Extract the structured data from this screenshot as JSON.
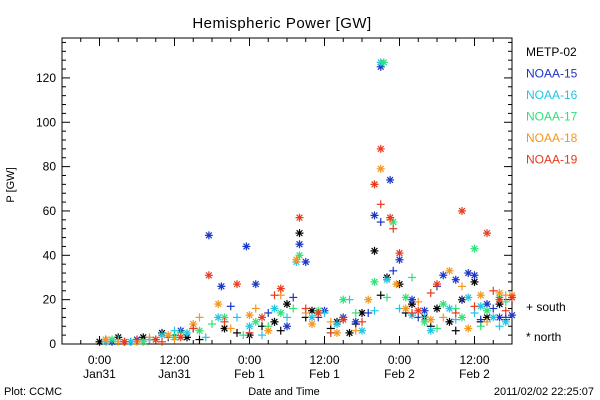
{
  "chart_data": {
    "type": "scatter",
    "title": "Hemispheric Power [GW]",
    "xlabel": "Date and Time",
    "ylabel": "P [GW]",
    "x_unit": "hours",
    "xlim": [
      -6,
      66
    ],
    "ylim": [
      0,
      138
    ],
    "y_ticks": [
      0,
      20,
      40,
      60,
      80,
      100,
      120
    ],
    "x_ticks": [
      {
        "x": 0,
        "time": "0:00",
        "date": "Jan31"
      },
      {
        "x": 12,
        "time": "12:00",
        "date": "Jan31"
      },
      {
        "x": 24,
        "time": "0:00",
        "date": "Feb 1"
      },
      {
        "x": 36,
        "time": "12:00",
        "date": "Feb 1"
      },
      {
        "x": 48,
        "time": "0:00",
        "date": "Feb 2"
      },
      {
        "x": 60,
        "time": "12:00",
        "date": "Feb 2"
      }
    ],
    "legend_position": "right",
    "marker_legend": [
      {
        "symbol": "+",
        "label": "+ south"
      },
      {
        "symbol": "*",
        "label": "* north"
      }
    ],
    "footer_left": "Plot: CCMC",
    "footer_right": "2011/02/02 22:25:07",
    "series": [
      {
        "name": "METP-02",
        "color": "#000000",
        "north": [
          [
            0,
            1
          ],
          [
            3,
            3
          ],
          [
            7,
            3
          ],
          [
            10,
            5
          ],
          [
            14,
            3
          ],
          [
            20,
            7
          ],
          [
            24,
            4
          ],
          [
            28,
            10
          ],
          [
            30,
            18
          ],
          [
            32,
            50
          ],
          [
            34,
            15
          ],
          [
            38,
            10
          ],
          [
            40,
            5
          ],
          [
            42,
            14
          ],
          [
            44,
            42
          ],
          [
            46,
            30
          ],
          [
            48,
            27
          ],
          [
            50,
            18
          ],
          [
            52,
            12
          ],
          [
            54,
            16
          ],
          [
            56,
            10
          ],
          [
            58,
            20
          ],
          [
            60,
            28
          ],
          [
            62,
            12
          ],
          [
            64,
            18
          ]
        ],
        "south": [
          [
            1,
            2
          ],
          [
            4,
            1
          ],
          [
            8,
            2
          ],
          [
            12,
            4
          ],
          [
            16,
            2
          ],
          [
            22,
            5
          ],
          [
            26,
            8
          ],
          [
            29,
            6
          ],
          [
            33,
            12
          ],
          [
            37,
            7
          ],
          [
            41,
            9
          ],
          [
            45,
            22
          ],
          [
            49,
            14
          ],
          [
            53,
            8
          ],
          [
            57,
            6
          ],
          [
            61,
            10
          ],
          [
            65,
            11
          ]
        ]
      },
      {
        "name": "NOAA-15",
        "color": "#1a35c8",
        "north": [
          [
            2,
            1
          ],
          [
            6,
            2
          ],
          [
            13,
            6
          ],
          [
            17.5,
            49
          ],
          [
            19.5,
            26
          ],
          [
            23.5,
            44
          ],
          [
            25,
            27
          ],
          [
            30,
            8
          ],
          [
            32,
            45
          ],
          [
            33,
            37
          ],
          [
            36,
            15
          ],
          [
            39,
            12
          ],
          [
            41,
            10
          ],
          [
            44,
            58
          ],
          [
            45,
            125
          ],
          [
            46.5,
            74
          ],
          [
            48,
            38
          ],
          [
            50,
            20
          ],
          [
            52,
            15
          ],
          [
            55,
            31
          ],
          [
            57,
            29
          ],
          [
            59,
            32
          ],
          [
            60,
            31
          ],
          [
            62,
            18
          ],
          [
            64,
            12
          ],
          [
            66,
            13
          ]
        ],
        "south": [
          [
            5,
            1
          ],
          [
            11,
            3
          ],
          [
            15,
            7
          ],
          [
            21,
            17
          ],
          [
            27,
            14
          ],
          [
            31,
            21
          ],
          [
            35,
            12
          ],
          [
            43,
            14
          ],
          [
            45,
            55
          ],
          [
            47,
            33
          ],
          [
            51,
            12
          ],
          [
            54,
            26
          ],
          [
            58,
            20
          ],
          [
            61,
            11
          ],
          [
            63,
            16
          ],
          [
            65,
            12
          ]
        ]
      },
      {
        "name": "NOAA-16",
        "color": "#1fc6e6",
        "north": [
          [
            1,
            1
          ],
          [
            5,
            1
          ],
          [
            10,
            4
          ],
          [
            14,
            5
          ],
          [
            19,
            12
          ],
          [
            24,
            8
          ],
          [
            28,
            16
          ],
          [
            31.5,
            37
          ],
          [
            34,
            12
          ],
          [
            38,
            9
          ],
          [
            42,
            6
          ],
          [
            45,
            127
          ],
          [
            46,
            29
          ],
          [
            50,
            13
          ],
          [
            53,
            6
          ],
          [
            56,
            16
          ],
          [
            59,
            21
          ],
          [
            61,
            17
          ],
          [
            63,
            12
          ],
          [
            65,
            10
          ]
        ],
        "south": [
          [
            3,
            2
          ],
          [
            8,
            2
          ],
          [
            12,
            6
          ],
          [
            17,
            3
          ],
          [
            22,
            12
          ],
          [
            26,
            4
          ],
          [
            30,
            12
          ],
          [
            36,
            14
          ],
          [
            40,
            20
          ],
          [
            44,
            15
          ],
          [
            48,
            16
          ],
          [
            52,
            12
          ],
          [
            57,
            11
          ],
          [
            60,
            14
          ],
          [
            64,
            8
          ]
        ]
      },
      {
        "name": "NOAA-17",
        "color": "#33e07a",
        "north": [
          [
            2,
            2
          ],
          [
            7,
            1
          ],
          [
            12,
            3
          ],
          [
            16,
            6
          ],
          [
            20,
            12
          ],
          [
            25,
            10
          ],
          [
            29,
            14
          ],
          [
            32,
            40
          ],
          [
            35,
            15
          ],
          [
            39,
            20
          ],
          [
            44,
            28
          ],
          [
            45.5,
            127
          ],
          [
            47,
            55
          ],
          [
            49,
            21
          ],
          [
            52,
            10
          ],
          [
            55,
            18
          ],
          [
            58,
            12
          ],
          [
            60,
            43
          ],
          [
            62,
            15
          ],
          [
            64,
            21
          ]
        ],
        "south": [
          [
            4,
            1
          ],
          [
            9,
            2
          ],
          [
            13,
            5
          ],
          [
            18,
            9
          ],
          [
            23,
            4
          ],
          [
            27,
            8
          ],
          [
            31,
            16
          ],
          [
            37,
            5
          ],
          [
            41,
            14
          ],
          [
            46,
            21
          ],
          [
            50,
            30
          ],
          [
            54,
            7
          ],
          [
            57,
            16
          ],
          [
            61,
            8
          ],
          [
            65,
            19
          ]
        ]
      },
      {
        "name": "NOAA-18",
        "color": "#f5961e",
        "north": [
          [
            1,
            2
          ],
          [
            6,
            1
          ],
          [
            11,
            4
          ],
          [
            15,
            9
          ],
          [
            19,
            18
          ],
          [
            24,
            13
          ],
          [
            27,
            6
          ],
          [
            31.5,
            38
          ],
          [
            34,
            9
          ],
          [
            38,
            5
          ],
          [
            43,
            20
          ],
          [
            45,
            79
          ],
          [
            47.5,
            27
          ],
          [
            49,
            16
          ],
          [
            53,
            11
          ],
          [
            56,
            33
          ],
          [
            59,
            7
          ],
          [
            61,
            22
          ],
          [
            64,
            23
          ],
          [
            66,
            22
          ]
        ],
        "south": [
          [
            3,
            1
          ],
          [
            8,
            3
          ],
          [
            12,
            2
          ],
          [
            16,
            12
          ],
          [
            21,
            7
          ],
          [
            25,
            16
          ],
          [
            29,
            22
          ],
          [
            33,
            14
          ],
          [
            37,
            10
          ],
          [
            41,
            6
          ],
          [
            44,
            72
          ],
          [
            46.5,
            56
          ],
          [
            51,
            19
          ],
          [
            55,
            12
          ],
          [
            58,
            26
          ],
          [
            62,
            10
          ],
          [
            65,
            22
          ]
        ]
      },
      {
        "name": "NOAA-19",
        "color": "#e83a1e",
        "north": [
          [
            4,
            1
          ],
          [
            9,
            2
          ],
          [
            13,
            3
          ],
          [
            17.5,
            31
          ],
          [
            22,
            27
          ],
          [
            26,
            12
          ],
          [
            29,
            25
          ],
          [
            32,
            57
          ],
          [
            35,
            14
          ],
          [
            39,
            11
          ],
          [
            44,
            72
          ],
          [
            45,
            88
          ],
          [
            46.5,
            57
          ],
          [
            48,
            41
          ],
          [
            51,
            15
          ],
          [
            54,
            27
          ],
          [
            58,
            60
          ],
          [
            62,
            50
          ],
          [
            64,
            20
          ],
          [
            66,
            21
          ]
        ],
        "south": [
          [
            6,
            2
          ],
          [
            10,
            1
          ],
          [
            15,
            7
          ],
          [
            20,
            10
          ],
          [
            24,
            5
          ],
          [
            28,
            22
          ],
          [
            33,
            16
          ],
          [
            37,
            5
          ],
          [
            42,
            10
          ],
          [
            45,
            63
          ],
          [
            47,
            52
          ],
          [
            50,
            14
          ],
          [
            53,
            23
          ],
          [
            57,
            14
          ],
          [
            60,
            17
          ],
          [
            63,
            24
          ],
          [
            65,
            15
          ]
        ]
      }
    ]
  }
}
